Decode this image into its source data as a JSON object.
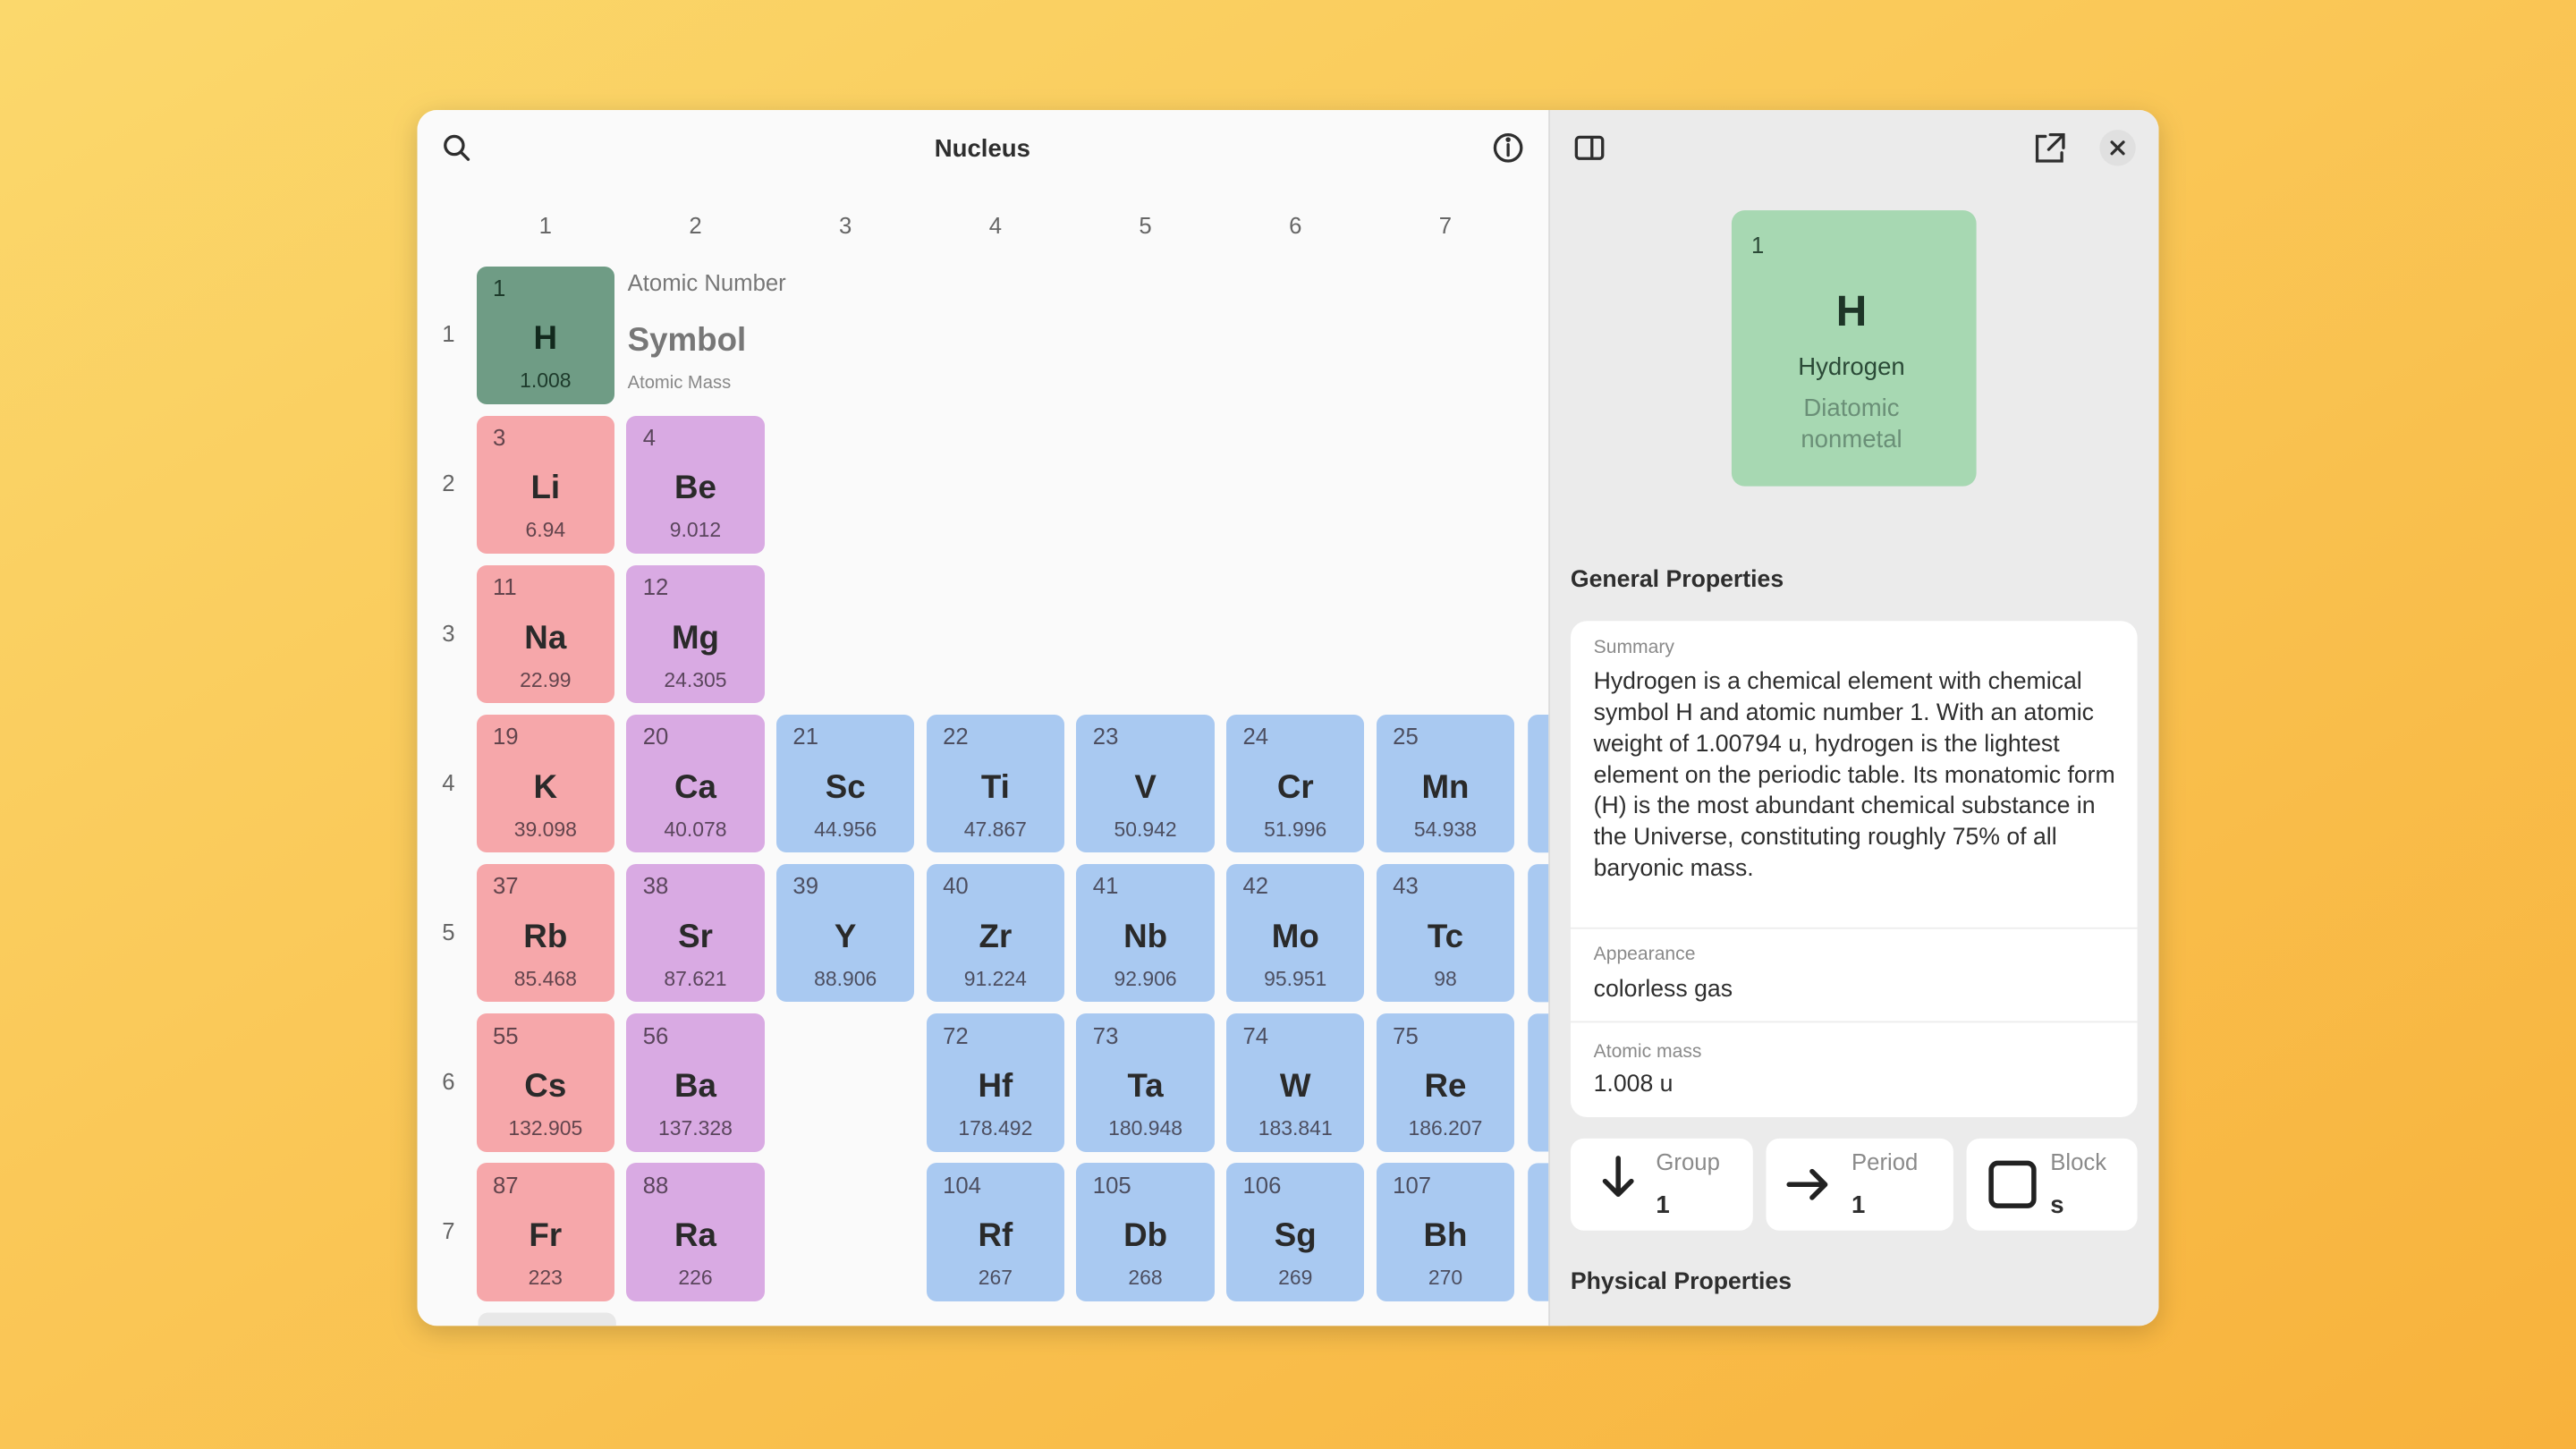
{
  "header": {
    "title": "Nucleus"
  },
  "table": {
    "columns": [
      1,
      2,
      3,
      4,
      5,
      6,
      7
    ],
    "periods": [
      {
        "label": 1,
        "cells": [
          {
            "number": 1,
            "symbol": "H",
            "mass": 1.008
          }
        ]
      },
      {
        "label": 2,
        "cells": [
          {
            "number": 3,
            "symbol": "Li",
            "mass": 6.94
          },
          {
            "number": 4,
            "symbol": "Be",
            "mass": 9.012
          }
        ]
      },
      {
        "label": 3,
        "cells": [
          {
            "number": 11,
            "symbol": "Na",
            "mass": 22.99
          },
          {
            "number": 12,
            "symbol": "Mg",
            "mass": 24.305
          }
        ]
      },
      {
        "label": 4,
        "cells": [
          {
            "number": 19,
            "symbol": "K",
            "mass": 39.098
          },
          {
            "number": 20,
            "symbol": "Ca",
            "mass": 40.078
          },
          {
            "number": 21,
            "symbol": "Sc",
            "mass": 44.956
          },
          {
            "number": 22,
            "symbol": "Ti",
            "mass": 47.867
          },
          {
            "number": 23,
            "symbol": "V",
            "mass": 50.942
          },
          {
            "number": 24,
            "symbol": "Cr",
            "mass": 51.996
          },
          {
            "number": 25,
            "symbol": "Mn",
            "mass": 54.938
          }
        ]
      },
      {
        "label": 5,
        "cells": [
          {
            "number": 37,
            "symbol": "Rb",
            "mass": 85.468
          },
          {
            "number": 38,
            "symbol": "Sr",
            "mass": 87.621
          },
          {
            "number": 39,
            "symbol": "Y",
            "mass": 88.906
          },
          {
            "number": 40,
            "symbol": "Zr",
            "mass": 91.224
          },
          {
            "number": 41,
            "symbol": "Nb",
            "mass": 92.906
          },
          {
            "number": 42,
            "symbol": "Mo",
            "mass": 95.951
          },
          {
            "number": 43,
            "symbol": "Tc",
            "mass": 98
          }
        ]
      },
      {
        "label": 6,
        "cells": [
          {
            "number": 55,
            "symbol": "Cs",
            "mass": 132.905
          },
          {
            "number": 56,
            "symbol": "Ba",
            "mass": 137.328
          },
          null,
          {
            "number": 72,
            "symbol": "Hf",
            "mass": 178.492
          },
          {
            "number": 73,
            "symbol": "Ta",
            "mass": 180.948
          },
          {
            "number": 74,
            "symbol": "W",
            "mass": 183.841
          },
          {
            "number": 75,
            "symbol": "Re",
            "mass": 186.207
          }
        ]
      },
      {
        "label": 7,
        "cells": [
          {
            "number": 87,
            "symbol": "Fr",
            "mass": 223
          },
          {
            "number": 88,
            "symbol": "Ra",
            "mass": 226
          },
          null,
          {
            "number": 104,
            "symbol": "Rf",
            "mass": 267
          },
          {
            "number": 105,
            "symbol": "Db",
            "mass": 268
          },
          {
            "number": 106,
            "symbol": "Sg",
            "mass": 269
          },
          {
            "number": 107,
            "symbol": "Bh",
            "mass": 270
          }
        ]
      }
    ]
  },
  "key": {
    "number": "Atomic Number",
    "symbol": "Symbol",
    "mass": "Atomic Mass"
  },
  "detail": {
    "number": 1,
    "symbol": "H",
    "name": "Hydrogen",
    "category": "Diatomic nonmetal",
    "general_title": "General Properties",
    "summary_label": "Summary",
    "summary": "Hydrogen is a chemical element with chemical symbol H and atomic number 1. With an atomic weight of 1.00794 u, hydrogen is the lightest element on the periodic table. Its monatomic form (H) is the most abundant chemical substance in the Universe, constituting roughly 75% of all baryonic mass.",
    "appearance_label": "Appearance",
    "appearance": "colorless gas",
    "mass_label": "Atomic mass",
    "mass": "1.008 u",
    "group_label": "Group",
    "group": 1,
    "period_label": "Period",
    "period": 1,
    "block_label": "Block",
    "block": "s",
    "physical_title": "Physical Properties"
  }
}
